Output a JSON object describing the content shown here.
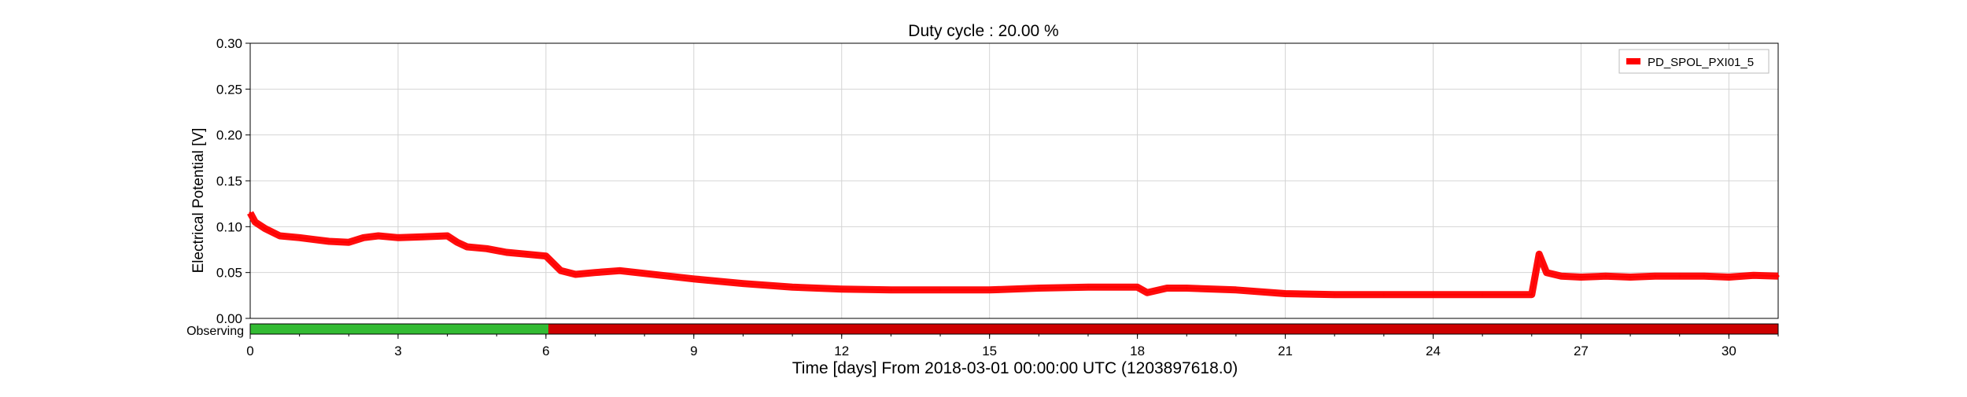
{
  "chart_data": {
    "type": "line",
    "title": "Duty cycle : 20.00 %",
    "xlabel": "Time [days] From 2018-03-01 00:00:00 UTC (1203897618.0)",
    "ylabel": "Electrical Potential [V]",
    "xlim": [
      0,
      31
    ],
    "ylim": [
      0,
      0.3
    ],
    "xticks": [
      0,
      3,
      6,
      9,
      12,
      15,
      18,
      21,
      24,
      27,
      30
    ],
    "xtick_labels": [
      "0",
      "3",
      "6",
      "9",
      "12",
      "15",
      "18",
      "21",
      "24",
      "27",
      "30"
    ],
    "yticks": [
      0,
      0.05,
      0.1,
      0.15,
      0.2,
      0.25,
      0.3
    ],
    "ytick_labels": [
      "0.00",
      "0.05",
      "0.10",
      "0.15",
      "0.20",
      "0.25",
      "0.30"
    ],
    "grid": true,
    "legend_position": "top-right",
    "series": [
      {
        "name": "PD_SPOL_PXI01_5",
        "color": "#ff0000",
        "x": [
          0,
          0.1,
          0.3,
          0.6,
          1.0,
          1.3,
          1.6,
          2.0,
          2.3,
          2.6,
          3.0,
          3.5,
          4.0,
          4.2,
          4.4,
          4.8,
          5.2,
          5.6,
          6.0,
          6.3,
          6.6,
          7.0,
          7.5,
          8.0,
          8.5,
          9.0,
          10.0,
          11.0,
          12.0,
          13.0,
          14.0,
          15.0,
          16.0,
          17.0,
          18.0,
          18.2,
          18.6,
          19.0,
          20.0,
          21.0,
          22.0,
          23.0,
          24.0,
          25.0,
          26.0,
          26.15,
          26.3,
          26.6,
          27.0,
          27.5,
          28.0,
          28.5,
          29.0,
          29.5,
          30.0,
          30.5,
          31.0
        ],
        "y": [
          0.115,
          0.105,
          0.098,
          0.09,
          0.088,
          0.086,
          0.084,
          0.083,
          0.088,
          0.09,
          0.088,
          0.089,
          0.09,
          0.083,
          0.078,
          0.076,
          0.072,
          0.07,
          0.068,
          0.052,
          0.048,
          0.05,
          0.052,
          0.049,
          0.046,
          0.043,
          0.038,
          0.034,
          0.032,
          0.031,
          0.031,
          0.031,
          0.033,
          0.034,
          0.034,
          0.028,
          0.033,
          0.033,
          0.031,
          0.027,
          0.026,
          0.026,
          0.026,
          0.026,
          0.026,
          0.07,
          0.05,
          0.046,
          0.045,
          0.046,
          0.045,
          0.046,
          0.046,
          0.046,
          0.045,
          0.047,
          0.046
        ]
      }
    ],
    "state_bar": {
      "label": "Observing",
      "segments": [
        {
          "start": 0,
          "end": 6.05,
          "state": "on"
        },
        {
          "start": 6.05,
          "end": 31.0,
          "state": "off"
        }
      ],
      "on_color": "#33bb33",
      "off_color": "#cc0000"
    }
  }
}
